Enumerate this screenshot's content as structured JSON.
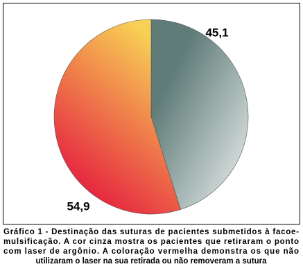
{
  "chart_data": {
    "type": "pie",
    "values": [
      45.1,
      54.9
    ],
    "value_labels": [
      "45,1",
      "54,9"
    ],
    "colors": [
      [
        "#5f7c78",
        "#d3dbda"
      ],
      [
        "#e4163e",
        "#f8d055"
      ]
    ],
    "caption": [
      "Gráfico 1 - Destinação das suturas de pacientes submetidos à facoe-",
      "mulsificação. A cor cinza mostra os pacientes que retiraram o ponto",
      "com laser de argônio. A coloração vermelha demonstra os que não",
      "utilizaram o laser na sua retirada ou não removeram a sutura"
    ]
  }
}
